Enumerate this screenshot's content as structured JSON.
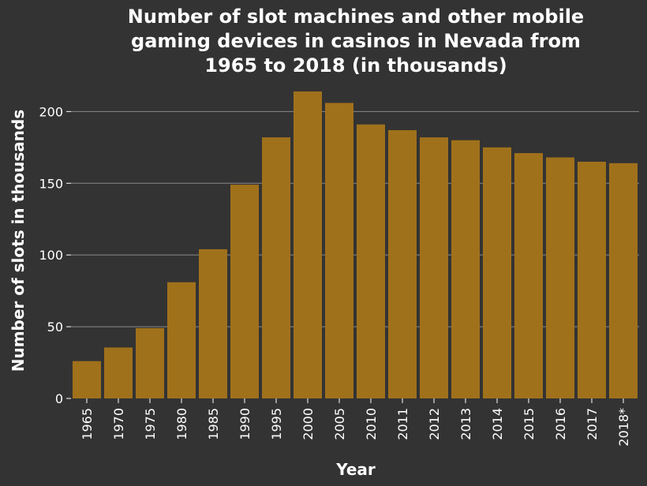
{
  "colors": {
    "background": "#333333",
    "bar": "#a0711b",
    "text": "#ffffff",
    "grid": "#8a8a8a"
  },
  "chart_data": {
    "type": "bar",
    "title_lines": [
      "Number of slot machines and other mobile",
      "gaming devices in casinos in Nevada from",
      "1965 to 2018 (in thousands)"
    ],
    "xlabel": "Year",
    "ylabel": "Number of slots in thousands",
    "categories": [
      "1965",
      "1970",
      "1975",
      "1980",
      "1985",
      "1990",
      "1995",
      "2000",
      "2005",
      "2010",
      "2011",
      "2012",
      "2013",
      "2014",
      "2015",
      "2016",
      "2017",
      "2018*"
    ],
    "values": [
      26,
      35.5,
      49,
      81,
      104,
      149,
      182,
      214,
      206,
      191,
      187,
      182,
      180,
      175,
      171,
      168,
      165,
      164
    ],
    "ylim": [
      0,
      220
    ],
    "yticks": [
      0,
      50,
      100,
      150,
      200
    ],
    "grid": true,
    "legend": "none"
  }
}
